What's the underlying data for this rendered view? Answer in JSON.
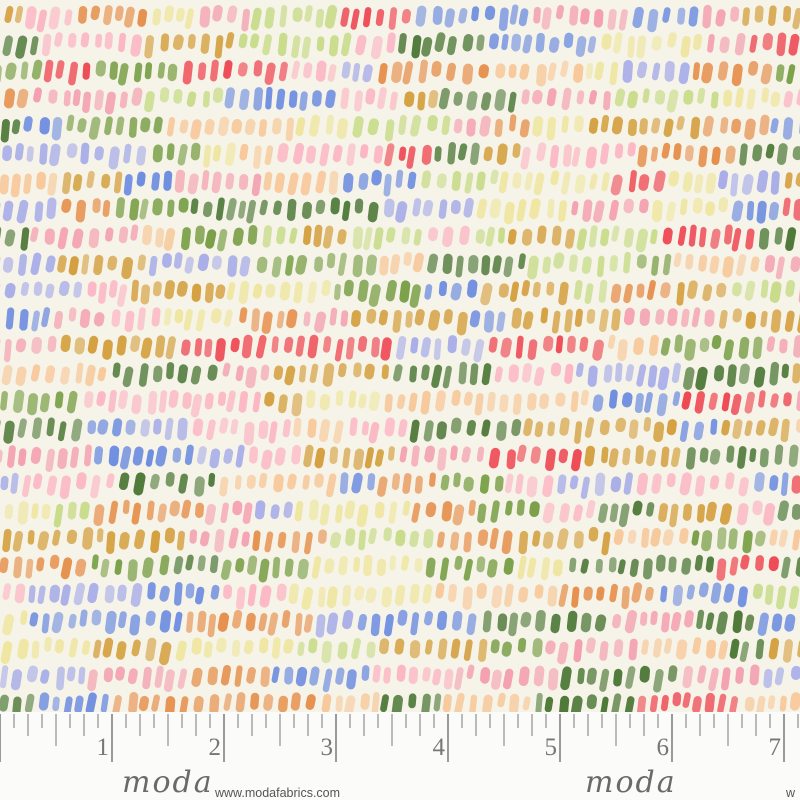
{
  "image": {
    "subject": "watercolor dash print fabric swatch",
    "background_color": "#f6f3e8",
    "palette": [
      "#6f8ee0",
      "#a9aee8",
      "#7aa048",
      "#4f7a3a",
      "#f4a0b0",
      "#ee4a55",
      "#f7c89a",
      "#e6904e",
      "#eee6a0",
      "#c8dc8a",
      "#fcb6c4",
      "#d4a040"
    ]
  },
  "ruler": {
    "unit_labels": [
      "1",
      "2",
      "3",
      "4",
      "5",
      "6",
      "7"
    ],
    "brand": "moda",
    "url": "www.modafabrics.com",
    "trailing_url_fragment": "w"
  }
}
